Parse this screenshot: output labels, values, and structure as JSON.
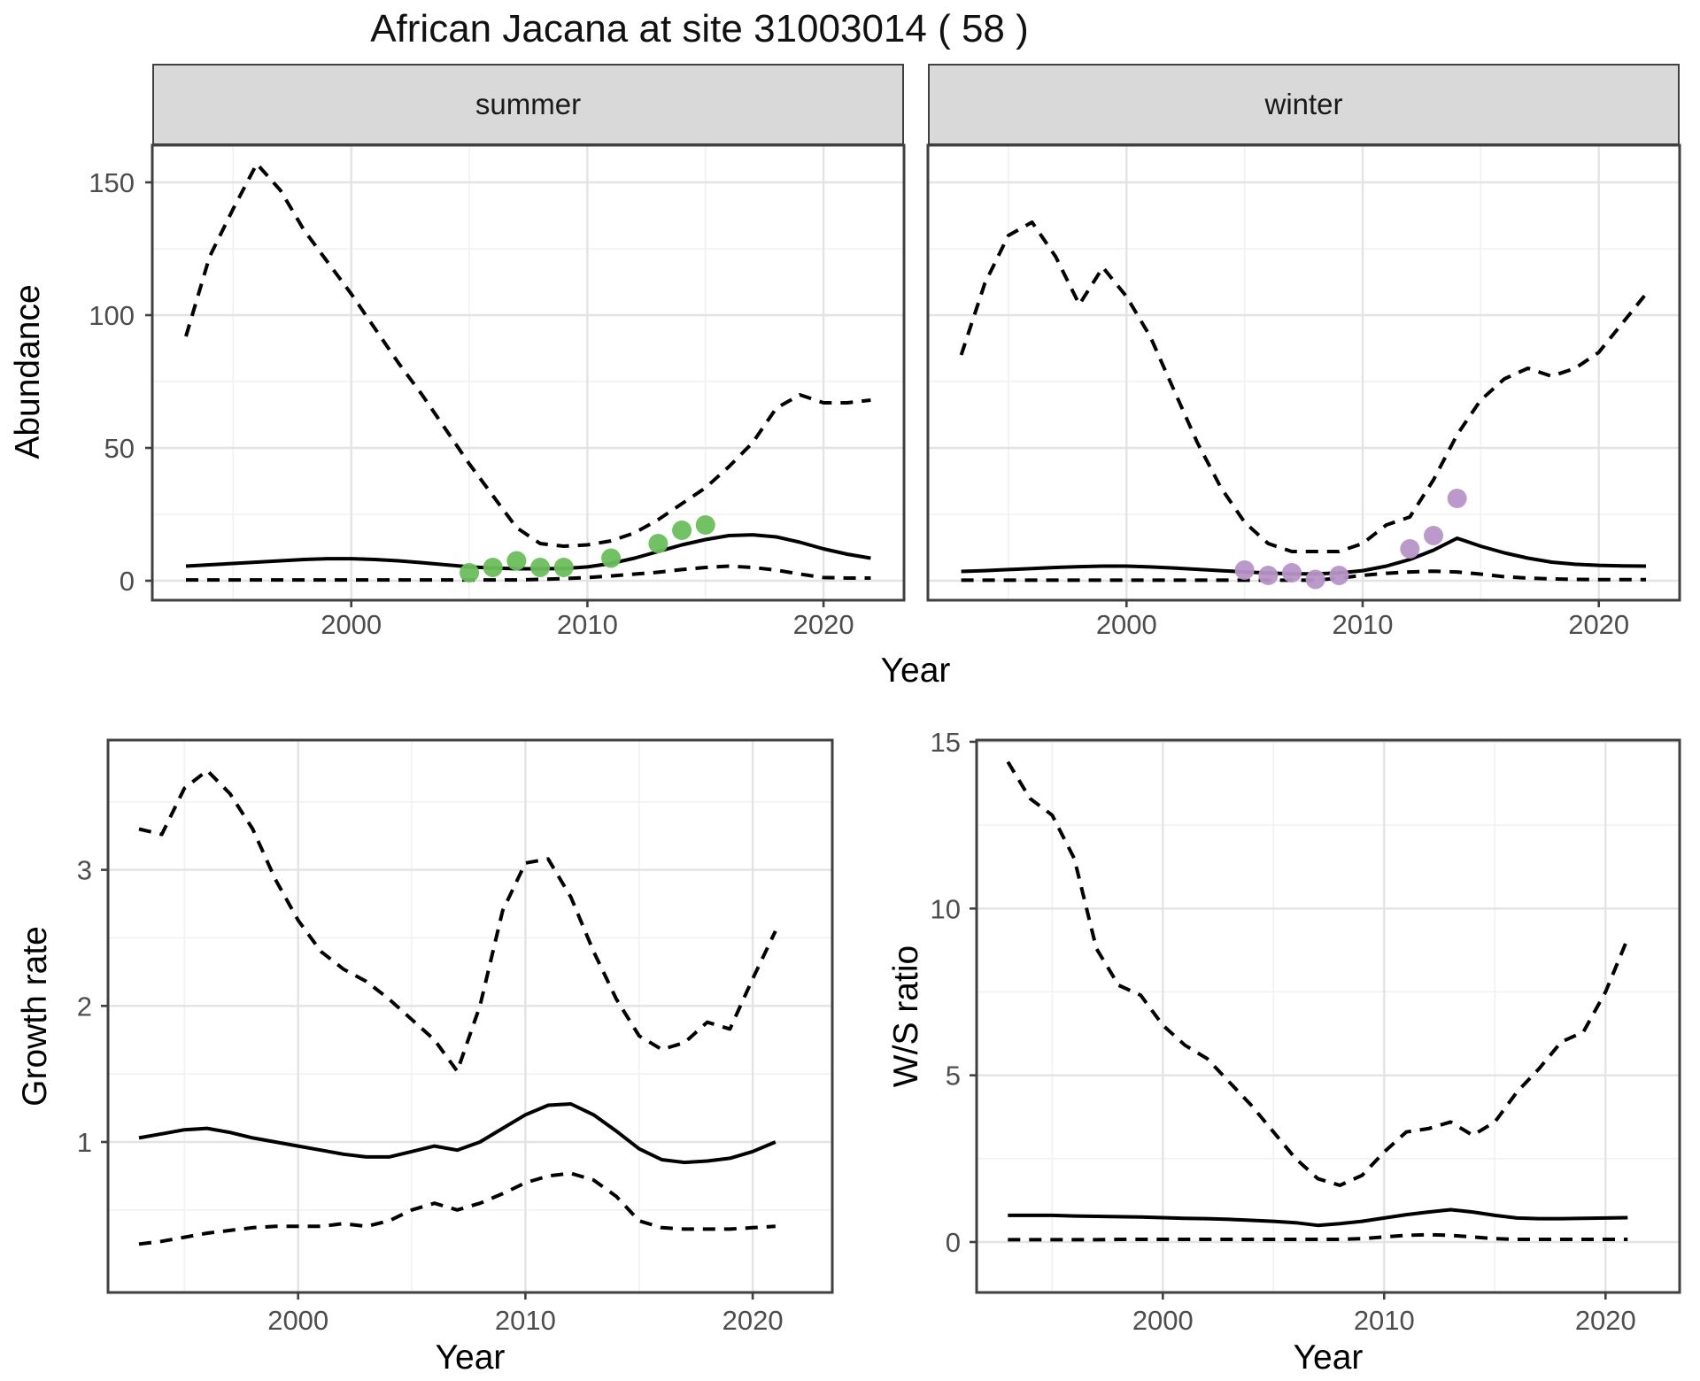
{
  "title": "African Jacana at site 31003014 ( 58 )",
  "colors": {
    "summer_points": "#6cbe5d",
    "winter_points": "#b795c8",
    "line": "#000000",
    "grid_major": "#e3e3e3",
    "grid_minor": "#f1f1f1",
    "panel_border": "#404040",
    "strip_bg": "#d9d9d9",
    "tick_text": "#4d4d4d"
  },
  "chart_data": [
    {
      "id": "abundance_summer",
      "type": "line",
      "facet": "summer",
      "xlabel": "Year",
      "ylabel": "Abundance",
      "xticks": [
        2000,
        2010,
        2020
      ],
      "xticks_minor": [
        1995,
        2005,
        2015
      ],
      "yticks": [
        0,
        50,
        100,
        150
      ],
      "yticks_minor": [
        25,
        75,
        125
      ],
      "xlim": [
        1991.6,
        2023.4
      ],
      "ylim": [
        -8,
        164
      ],
      "x": [
        1993,
        1994,
        1995,
        1996,
        1997,
        1998,
        1999,
        2000,
        2001,
        2002,
        2003,
        2004,
        2005,
        2006,
        2007,
        2008,
        2009,
        2010,
        2011,
        2012,
        2013,
        2014,
        2015,
        2016,
        2017,
        2018,
        2019,
        2020,
        2021,
        2022
      ],
      "series": [
        {
          "name": "upper_ci",
          "linetype": "dashed",
          "values": [
            92,
            122,
            140,
            157,
            147,
            132,
            120,
            108,
            95,
            82,
            70,
            57,
            44,
            32,
            20,
            14,
            13,
            13.5,
            15,
            18,
            23,
            29,
            35,
            43,
            52,
            65,
            70,
            67,
            67,
            68
          ]
        },
        {
          "name": "median",
          "linetype": "solid",
          "values": [
            5.5,
            6,
            6.5,
            7,
            7.5,
            8,
            8.3,
            8.3,
            8,
            7.5,
            6.8,
            6,
            5.2,
            4.8,
            4.5,
            4.5,
            4.6,
            5.2,
            6.5,
            8.5,
            11,
            13.5,
            15.5,
            17,
            17.3,
            16.5,
            14.5,
            12,
            10,
            8.5
          ]
        },
        {
          "name": "lower_ci",
          "linetype": "dashed",
          "values": [
            0.3,
            0.3,
            0.3,
            0.3,
            0.3,
            0.3,
            0.3,
            0.3,
            0.3,
            0.3,
            0.3,
            0.3,
            0.3,
            0.3,
            0.3,
            0.5,
            0.8,
            1.2,
            1.8,
            2.5,
            3.2,
            4.2,
            5,
            5.5,
            5,
            4,
            2.5,
            1.2,
            1,
            1
          ]
        }
      ],
      "points": {
        "name": "observed_counts_summer",
        "color_key": "summer_points",
        "data": [
          [
            2005,
            3
          ],
          [
            2006,
            5
          ],
          [
            2007,
            7.5
          ],
          [
            2008,
            5
          ],
          [
            2009,
            5
          ],
          [
            2011,
            8.5
          ],
          [
            2013,
            14
          ],
          [
            2014,
            19
          ],
          [
            2015,
            21
          ]
        ]
      }
    },
    {
      "id": "abundance_winter",
      "type": "line",
      "facet": "winter",
      "xlabel": "Year",
      "ylabel": "Abundance",
      "xticks": [
        2000,
        2010,
        2020
      ],
      "xticks_minor": [
        1995,
        2005,
        2015
      ],
      "yticks": [
        0,
        50,
        100,
        150
      ],
      "yticks_minor": [
        25,
        75,
        125
      ],
      "xlim": [
        1991.6,
        2023.4
      ],
      "ylim": [
        -8,
        164
      ],
      "x": [
        1993,
        1994,
        1995,
        1996,
        1997,
        1998,
        1999,
        2000,
        2001,
        2002,
        2003,
        2004,
        2005,
        2006,
        2007,
        2008,
        2009,
        2010,
        2011,
        2012,
        2013,
        2014,
        2015,
        2016,
        2017,
        2018,
        2019,
        2020,
        2021,
        2022
      ],
      "series": [
        {
          "name": "upper_ci",
          "linetype": "dashed",
          "values": [
            85,
            112,
            130,
            135,
            122,
            104,
            118,
            107,
            92,
            72,
            52,
            35,
            22,
            14,
            11,
            11,
            11,
            14,
            21,
            24,
            38,
            55,
            68,
            76,
            80,
            77,
            80,
            86,
            97,
            108
          ]
        },
        {
          "name": "median",
          "linetype": "solid",
          "values": [
            3.5,
            3.8,
            4.2,
            4.6,
            5,
            5.3,
            5.5,
            5.5,
            5.2,
            4.8,
            4.3,
            3.8,
            3.3,
            2.9,
            2.6,
            2.6,
            2.9,
            3.8,
            5.5,
            8,
            11.5,
            16,
            13,
            10.5,
            8.5,
            7,
            6.2,
            5.8,
            5.6,
            5.5
          ]
        },
        {
          "name": "lower_ci",
          "linetype": "dashed",
          "values": [
            0.2,
            0.2,
            0.2,
            0.2,
            0.2,
            0.2,
            0.2,
            0.2,
            0.2,
            0.2,
            0.2,
            0.2,
            0.2,
            0.2,
            0.2,
            0.2,
            1,
            2,
            2.8,
            3.3,
            3.6,
            3.3,
            2.5,
            1.5,
            1,
            0.7,
            0.5,
            0.4,
            0.4,
            0.4
          ]
        }
      ],
      "points": {
        "name": "observed_counts_winter",
        "color_key": "winter_points",
        "data": [
          [
            2005,
            4
          ],
          [
            2006,
            2
          ],
          [
            2007,
            3
          ],
          [
            2008,
            0.5
          ],
          [
            2009,
            2
          ],
          [
            2012,
            12
          ],
          [
            2013,
            17
          ],
          [
            2014,
            31
          ]
        ]
      }
    },
    {
      "id": "growth_rate",
      "type": "line",
      "facet": null,
      "xlabel": "Year",
      "ylabel": "Growth rate",
      "xticks": [
        2000,
        2010,
        2020
      ],
      "xticks_minor": [
        1995,
        2005,
        2015
      ],
      "yticks": [
        1,
        2,
        3
      ],
      "yticks_minor": [
        0.5,
        1.5,
        2.5,
        3.5
      ],
      "xlim": [
        1991.6,
        2023.5
      ],
      "ylim": [
        -0.1,
        3.95
      ],
      "x": [
        1993,
        1994,
        1995,
        1996,
        1997,
        1998,
        1999,
        2000,
        2001,
        2002,
        2003,
        2004,
        2005,
        2006,
        2007,
        2008,
        2009,
        2010,
        2011,
        2012,
        2013,
        2014,
        2015,
        2016,
        2017,
        2018,
        2019,
        2020,
        2021
      ],
      "series": [
        {
          "name": "upper_ci",
          "linetype": "dashed",
          "values": [
            3.3,
            3.26,
            3.6,
            3.73,
            3.56,
            3.3,
            2.93,
            2.63,
            2.4,
            2.27,
            2.18,
            2.05,
            1.9,
            1.75,
            1.52,
            2.0,
            2.7,
            3.05,
            3.08,
            2.8,
            2.4,
            2.05,
            1.78,
            1.68,
            1.73,
            1.88,
            1.83,
            2.2,
            2.55
          ]
        },
        {
          "name": "median",
          "linetype": "solid",
          "values": [
            1.03,
            1.06,
            1.09,
            1.1,
            1.07,
            1.03,
            1.0,
            0.97,
            0.94,
            0.91,
            0.89,
            0.89,
            0.93,
            0.97,
            0.94,
            1.0,
            1.1,
            1.2,
            1.27,
            1.28,
            1.2,
            1.08,
            0.95,
            0.87,
            0.85,
            0.86,
            0.88,
            0.93,
            1.0
          ]
        },
        {
          "name": "lower_ci",
          "linetype": "dashed",
          "values": [
            0.25,
            0.27,
            0.3,
            0.33,
            0.35,
            0.37,
            0.38,
            0.38,
            0.38,
            0.4,
            0.38,
            0.42,
            0.5,
            0.55,
            0.5,
            0.55,
            0.62,
            0.7,
            0.75,
            0.77,
            0.72,
            0.6,
            0.42,
            0.37,
            0.36,
            0.36,
            0.36,
            0.37,
            0.38
          ]
        }
      ]
    },
    {
      "id": "ws_ratio",
      "type": "line",
      "facet": null,
      "xlabel": "Year",
      "ylabel": "W/S ratio",
      "xticks": [
        2000,
        2010,
        2020
      ],
      "xticks_minor": [
        1995,
        2005,
        2015
      ],
      "yticks": [
        0,
        5,
        10,
        15
      ],
      "yticks_minor": [
        2.5,
        7.5,
        12.5
      ],
      "xlim": [
        1991.6,
        2023.4
      ],
      "ylim": [
        -1.5,
        15.1
      ],
      "x": [
        1993,
        1994,
        1995,
        1996,
        1997,
        1998,
        1999,
        2000,
        2001,
        2002,
        2003,
        2004,
        2005,
        2006,
        2007,
        2008,
        2009,
        2010,
        2011,
        2012,
        2013,
        2014,
        2015,
        2016,
        2017,
        2018,
        2019,
        2020,
        2021
      ],
      "series": [
        {
          "name": "upper_ci",
          "linetype": "dashed",
          "values": [
            14.4,
            13.3,
            12.8,
            11.5,
            8.8,
            7.7,
            7.4,
            6.5,
            5.9,
            5.5,
            4.8,
            4.1,
            3.3,
            2.5,
            1.9,
            1.7,
            2.0,
            2.7,
            3.3,
            3.4,
            3.6,
            3.2,
            3.6,
            4.5,
            5.2,
            6.0,
            6.3,
            7.5,
            9.1
          ]
        },
        {
          "name": "median",
          "linetype": "solid",
          "values": [
            0.8,
            0.8,
            0.8,
            0.78,
            0.77,
            0.76,
            0.75,
            0.73,
            0.71,
            0.7,
            0.68,
            0.65,
            0.62,
            0.58,
            0.5,
            0.55,
            0.62,
            0.72,
            0.82,
            0.9,
            0.97,
            0.9,
            0.8,
            0.72,
            0.7,
            0.7,
            0.71,
            0.72,
            0.73
          ]
        },
        {
          "name": "lower_ci",
          "linetype": "dashed",
          "values": [
            0.07,
            0.07,
            0.07,
            0.07,
            0.07,
            0.08,
            0.08,
            0.08,
            0.08,
            0.08,
            0.08,
            0.08,
            0.08,
            0.08,
            0.08,
            0.08,
            0.1,
            0.15,
            0.2,
            0.22,
            0.2,
            0.15,
            0.1,
            0.08,
            0.08,
            0.08,
            0.08,
            0.08,
            0.08
          ]
        }
      ]
    }
  ]
}
